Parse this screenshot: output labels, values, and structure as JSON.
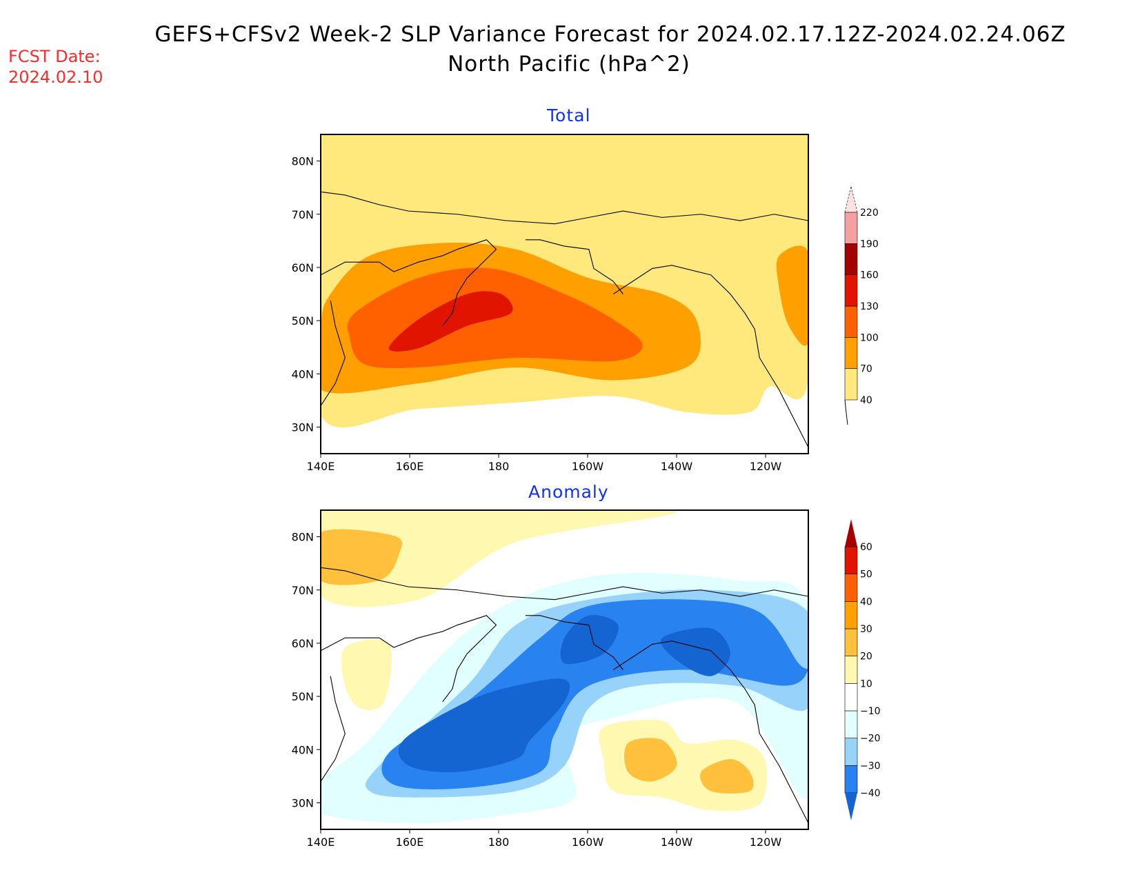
{
  "header": {
    "title_line1": "GEFS+CFSv2 Week-2 SLP Variance Forecast for 2024.02.17.12Z-2024.02.24.06Z",
    "title_line2": "North Pacific (hPa^2)",
    "fcst_label": "FCST Date:",
    "fcst_date": "2024.02.10"
  },
  "chart_data": [
    {
      "type": "heatmap",
      "title": "Total",
      "subtype": "filled-contour map",
      "region": "North Pacific",
      "units": "hPa^2",
      "x_ticks": [
        "140E",
        "160E",
        "180",
        "160W",
        "140W",
        "120W"
      ],
      "y_ticks": [
        "30N",
        "40N",
        "50N",
        "60N",
        "70N",
        "80N"
      ],
      "lon_range": [
        "140E",
        "110W"
      ],
      "lat_range": [
        25,
        85
      ],
      "colorbar": {
        "levels": [
          40,
          70,
          100,
          130,
          160,
          190,
          220
        ],
        "colors": [
          "#ffe87c",
          "#ffa000",
          "#ff6000",
          "#e11400",
          "#a50000",
          "#f4a0a0",
          "#fde0e0"
        ],
        "below_color": "#ffffff"
      },
      "features": [
        {
          "label": "maximum",
          "value_range": "130-160",
          "location": "near 160E-180, 45-52N"
        },
        {
          "label": "100-130 band",
          "location": "150E-150W, 40-57N"
        },
        {
          "label": "below 40",
          "location": "south of ~33N and east Siberia"
        }
      ]
    },
    {
      "type": "heatmap",
      "title": "Anomaly",
      "subtype": "filled-contour map",
      "region": "North Pacific",
      "units": "hPa^2",
      "x_ticks": [
        "140E",
        "160E",
        "180",
        "160W",
        "140W",
        "120W"
      ],
      "y_ticks": [
        "30N",
        "40N",
        "50N",
        "60N",
        "70N",
        "80N"
      ],
      "lon_range": [
        "140E",
        "110W"
      ],
      "lat_range": [
        25,
        85
      ],
      "colorbar": {
        "levels": [
          -40,
          -30,
          -20,
          -10,
          10,
          20,
          30,
          40,
          50,
          60
        ],
        "colors": [
          "#1464d2",
          "#2882f0",
          "#96d2fa",
          "#e1ffff",
          "#ffffff",
          "#fff8b0",
          "#ffc03c",
          "#ffa000",
          "#ff6000",
          "#e11400",
          "#a50000"
        ]
      },
      "features": [
        {
          "label": "minimum",
          "value_range": "<-40",
          "location": "160E-170W, 35-47N"
        },
        {
          "label": "negative band",
          "location": "Gulf of Alaska and Alaska"
        },
        {
          "label": "positive 20-30",
          "location": "near 145W 40N and 125W 37N"
        },
        {
          "label": "positive 20-30",
          "location": "Arctic near 140E-150E 75-80N"
        }
      ]
    }
  ]
}
